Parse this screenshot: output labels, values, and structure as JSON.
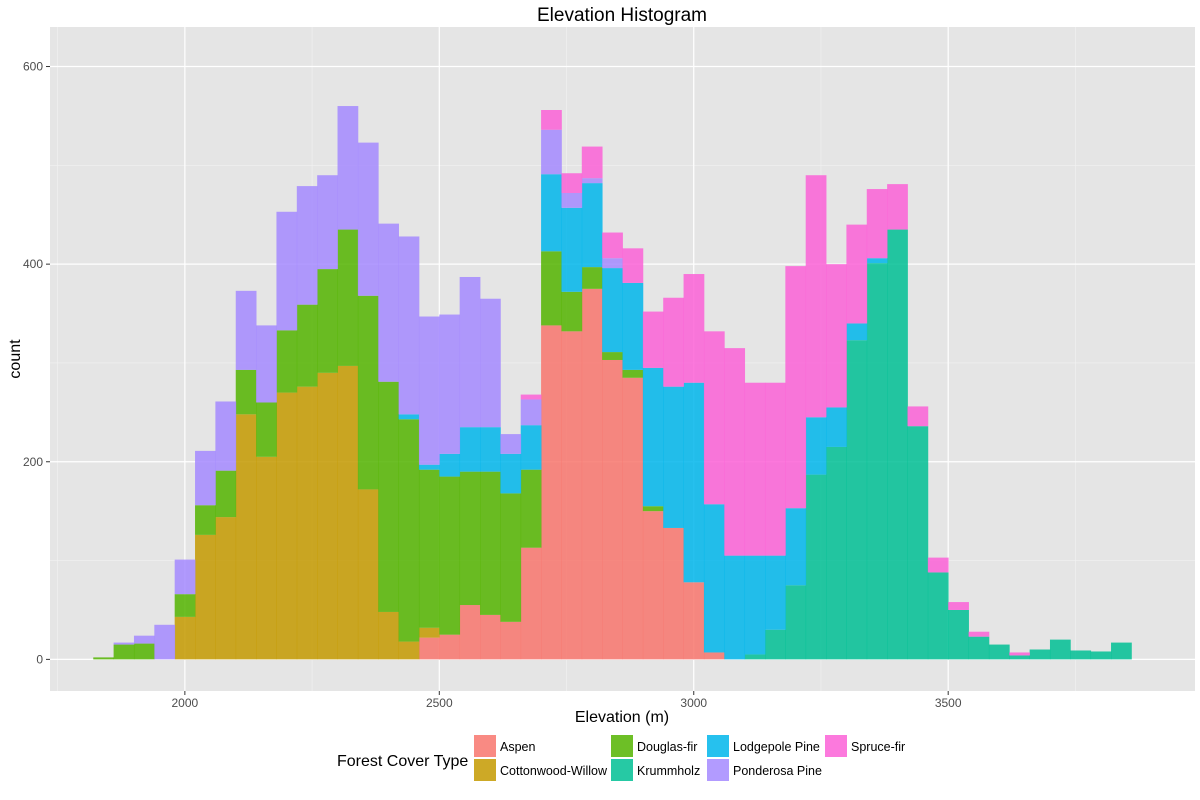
{
  "chart_data": {
    "type": "histogram",
    "title": "Elevation Histogram",
    "xlabel": "Elevation (m)",
    "ylabel": "count",
    "xlim": [
      1735,
      3985
    ],
    "ylim": [
      -32,
      640
    ],
    "x_ticks": [
      2000,
      2500,
      3000,
      3500
    ],
    "y_ticks": [
      0,
      200,
      400,
      600
    ],
    "x_tick_labels": [
      "2000",
      "2500",
      "3000",
      "3500"
    ],
    "y_tick_labels": [
      "0",
      "200",
      "400",
      "600"
    ],
    "bin_width": 40,
    "bin_starts": [
      1820,
      1860,
      1900,
      1940,
      1980,
      2020,
      2060,
      2100,
      2140,
      2180,
      2220,
      2260,
      2300,
      2340,
      2380,
      2420,
      2460,
      2500,
      2540,
      2580,
      2620,
      2660,
      2700,
      2740,
      2780,
      2820,
      2860,
      2900,
      2940,
      2980,
      3020,
      3060,
      3100,
      3140,
      3180,
      3220,
      3260,
      3300,
      3340,
      3380,
      3420,
      3460,
      3500,
      3540,
      3580,
      3620,
      3660,
      3700,
      3740,
      3780,
      3820
    ],
    "stacking": "stacked (cumulative tops shown)",
    "grid": true,
    "legend_position": "bottom",
    "legend_title": "Forest Cover Type",
    "series": [
      {
        "name": "Aspen",
        "color": "#F8766D",
        "values": [
          0,
          0,
          0,
          0,
          0,
          0,
          0,
          0,
          0,
          0,
          0,
          0,
          0,
          0,
          0,
          0,
          22,
          25,
          55,
          45,
          38,
          113,
          338,
          332,
          375,
          303,
          285,
          150,
          133,
          78,
          7,
          0,
          0,
          0,
          0,
          0,
          0,
          0,
          0,
          0,
          0,
          0,
          0,
          0,
          0,
          0,
          0,
          0,
          0,
          0,
          0
        ]
      },
      {
        "name": "Cottonwood-Willow",
        "color": "#C49A00",
        "values": [
          0,
          0,
          0,
          0,
          43,
          126,
          144,
          248,
          205,
          270,
          276,
          290,
          297,
          172,
          48,
          18,
          10,
          0,
          0,
          0,
          0,
          0,
          0,
          0,
          0,
          0,
          0,
          0,
          0,
          0,
          0,
          0,
          0,
          0,
          0,
          0,
          0,
          0,
          0,
          0,
          0,
          0,
          0,
          0,
          0,
          0,
          0,
          0,
          0,
          0,
          0
        ]
      },
      {
        "name": "Douglas-fir",
        "color": "#53B400",
        "values": [
          2,
          15,
          16,
          0,
          23,
          30,
          47,
          45,
          55,
          63,
          83,
          105,
          138,
          196,
          233,
          225,
          160,
          160,
          135,
          145,
          130,
          79,
          75,
          40,
          22,
          8,
          8,
          5,
          0,
          0,
          0,
          0,
          0,
          0,
          0,
          0,
          0,
          0,
          0,
          0,
          0,
          0,
          0,
          0,
          0,
          0,
          0,
          0,
          0,
          0,
          0
        ]
      },
      {
        "name": "Krummholz",
        "color": "#00C094",
        "values": [
          0,
          0,
          0,
          0,
          0,
          0,
          0,
          0,
          0,
          0,
          0,
          0,
          0,
          0,
          0,
          0,
          0,
          0,
          0,
          0,
          0,
          0,
          0,
          0,
          0,
          0,
          0,
          0,
          0,
          0,
          0,
          0,
          5,
          30,
          75,
          187,
          215,
          323,
          401,
          435,
          236,
          88,
          50,
          23,
          15,
          4,
          10,
          20,
          9,
          8,
          17
        ]
      },
      {
        "name": "Lodgepole Pine",
        "color": "#00B6EB",
        "values": [
          0,
          0,
          0,
          0,
          0,
          0,
          0,
          0,
          0,
          0,
          0,
          0,
          0,
          0,
          0,
          5,
          5,
          23,
          45,
          45,
          40,
          45,
          78,
          85,
          85,
          85,
          88,
          140,
          143,
          202,
          150,
          105,
          100,
          75,
          78,
          58,
          40,
          17,
          5,
          0,
          0,
          0,
          0,
          0,
          0,
          0,
          0,
          0,
          0,
          0,
          0
        ]
      },
      {
        "name": "Ponderosa Pine",
        "color": "#A58AFF",
        "values": [
          0,
          2,
          8,
          35,
          35,
          55,
          70,
          80,
          78,
          120,
          120,
          95,
          125,
          155,
          160,
          180,
          150,
          141,
          152,
          130,
          20,
          26,
          45,
          15,
          5,
          10,
          0,
          0,
          0,
          0,
          0,
          0,
          0,
          0,
          0,
          0,
          0,
          0,
          0,
          0,
          0,
          0,
          0,
          0,
          0,
          0,
          0,
          0,
          0,
          0,
          0
        ]
      },
      {
        "name": "Spruce-fir",
        "color": "#FB61D7",
        "values": [
          0,
          0,
          0,
          0,
          0,
          0,
          0,
          0,
          0,
          0,
          0,
          0,
          0,
          0,
          0,
          0,
          0,
          0,
          0,
          0,
          0,
          5,
          20,
          20,
          32,
          26,
          35,
          57,
          90,
          110,
          175,
          210,
          175,
          175,
          245,
          245,
          145,
          100,
          70,
          46,
          20,
          15,
          8,
          5,
          0,
          3,
          0,
          0,
          0,
          0,
          0
        ]
      }
    ],
    "legend_rows": [
      [
        "Aspen",
        "Douglas-fir",
        "Lodgepole Pine",
        "Spruce-fir"
      ],
      [
        "Cottonwood-Willow",
        "Krummholz",
        "Ponderosa Pine"
      ]
    ]
  }
}
